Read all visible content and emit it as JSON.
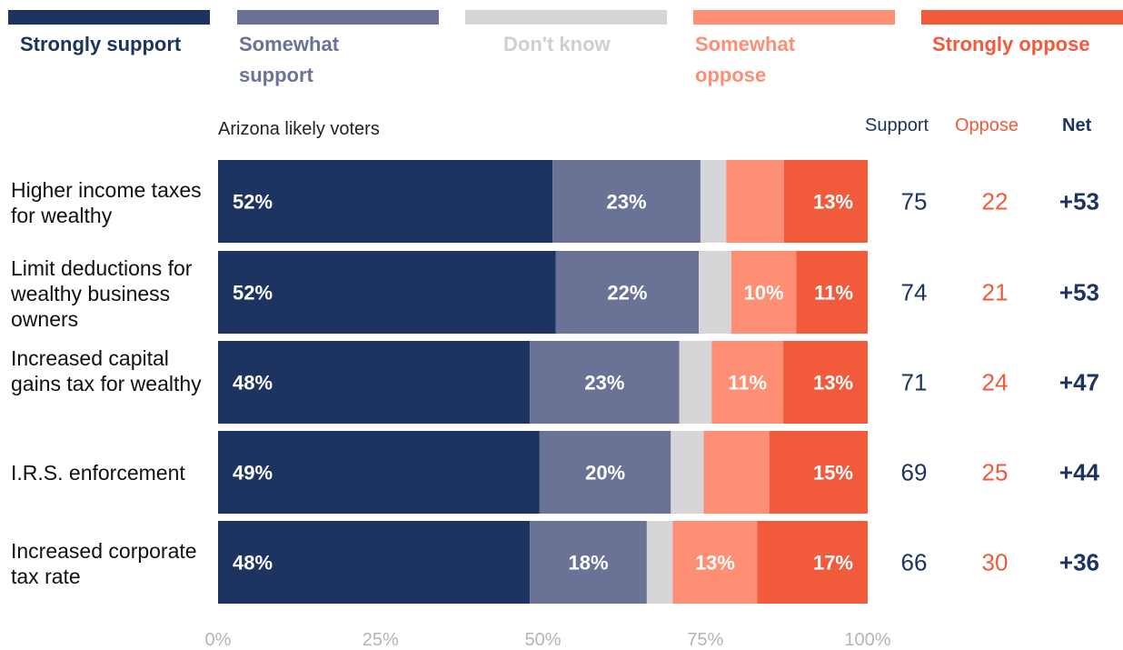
{
  "legend": [
    {
      "label": "Strongly support",
      "color": "#1d3461",
      "text_color": "#1d3461"
    },
    {
      "label": "Somewhat support",
      "color": "#6a7395",
      "text_color": "#6a7395"
    },
    {
      "label": "Don't know",
      "color": "#d6d6d8",
      "text_color": "#cfcfd1"
    },
    {
      "label": "Somewhat oppose",
      "color": "#fe8f75",
      "text_color": "#fe8f75"
    },
    {
      "label": "Strongly oppose",
      "color": "#f25a3c",
      "text_color": "#f25a3c"
    }
  ],
  "subtitle": "Arizona likely voters",
  "columns": {
    "support": "Support",
    "oppose": "Oppose",
    "net": "Net"
  },
  "chart_data": {
    "type": "bar",
    "orientation": "horizontal",
    "stacked": true,
    "categories": [
      "Higher income taxes for wealthy",
      "Limit deductions for wealthy business owners",
      "Increased capital gains tax for wealthy",
      "I.R.S. enforcement",
      "Increased corporate tax rate"
    ],
    "series": [
      {
        "name": "Strongly support",
        "values": [
          52,
          52,
          48,
          49,
          48
        ],
        "labels": [
          "52%",
          "52%",
          "48%",
          "49%",
          "48%"
        ]
      },
      {
        "name": "Somewhat support",
        "values": [
          23,
          22,
          23,
          20,
          18
        ],
        "labels": [
          "23%",
          "22%",
          "23%",
          "20%",
          "18%"
        ]
      },
      {
        "name": "Don't know",
        "values": [
          4,
          5,
          5,
          5,
          4
        ],
        "labels": [
          "",
          "",
          "",
          "",
          ""
        ]
      },
      {
        "name": "Somewhat oppose",
        "values": [
          9,
          10,
          11,
          10,
          13
        ],
        "labels": [
          "",
          "10%",
          "11%",
          "",
          "13%"
        ]
      },
      {
        "name": "Strongly oppose",
        "values": [
          13,
          11,
          13,
          15,
          17
        ],
        "labels": [
          "13%",
          "11%",
          "13%",
          "15%",
          "17%"
        ]
      }
    ],
    "support": [
      "75",
      "74",
      "71",
      "69",
      "66"
    ],
    "oppose": [
      "22",
      "21",
      "24",
      "25",
      "30"
    ],
    "net": [
      "+53",
      "+53",
      "+47",
      "+44",
      "+36"
    ],
    "xlim": [
      0,
      100
    ],
    "xticks": [
      "0%",
      "25%",
      "50%",
      "75%",
      "100%"
    ],
    "title": "",
    "xlabel": "",
    "ylabel": "",
    "legend_position": "top",
    "grid": false
  }
}
